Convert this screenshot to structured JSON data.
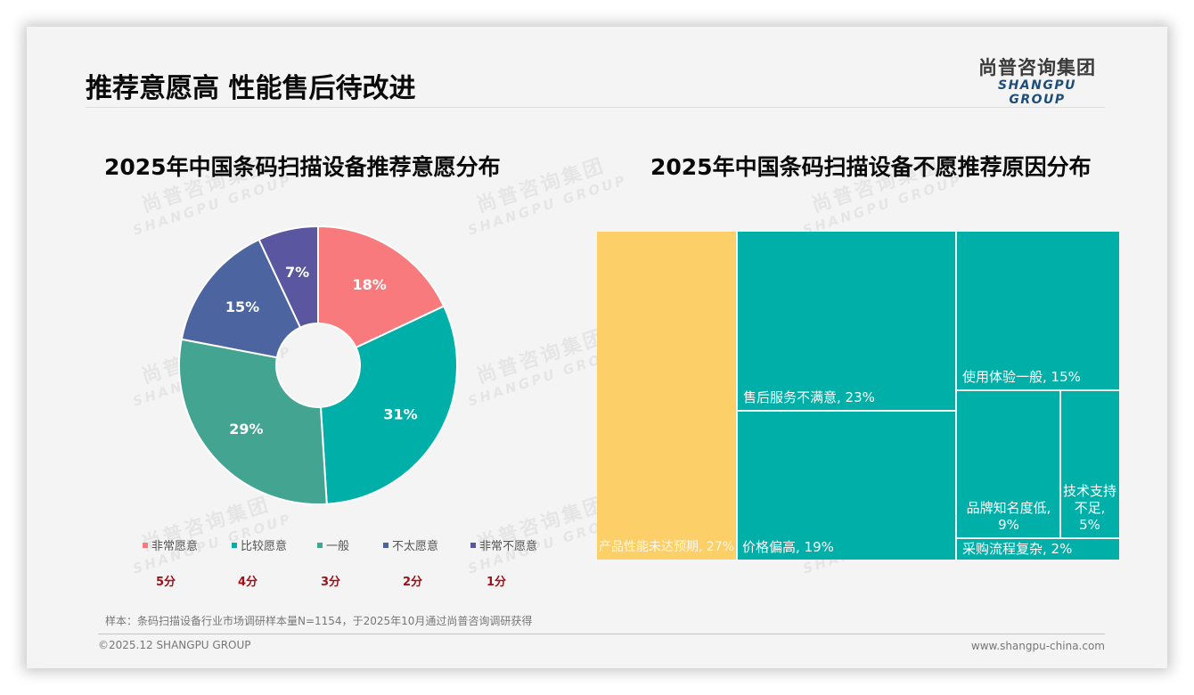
{
  "header": {
    "title": "推荐意愿高 性能售后待改进",
    "logo_cn": "尚普咨询集团",
    "logo_en": "SHANGPU GROUP"
  },
  "watermark": {
    "cn": "尚普咨询集团",
    "en": "SHANGPU GROUP"
  },
  "left_chart": {
    "title": "2025年中国条码扫描设备推荐意愿分布",
    "scores": [
      "5分",
      "4分",
      "3分",
      "2分",
      "1分"
    ]
  },
  "right_chart": {
    "title": "2025年中国条码扫描设备不愿推荐原因分布"
  },
  "chart_data": [
    {
      "type": "pie",
      "subtype": "donut",
      "title": "2025年中国条码扫描设备推荐意愿分布",
      "categories": [
        "非常愿意",
        "比较愿意",
        "一般",
        "不太愿意",
        "非常不愿意"
      ],
      "values": [
        18,
        31,
        29,
        15,
        7
      ],
      "labels": [
        "18%",
        "31%",
        "29%",
        "15%",
        "7%"
      ],
      "colors": [
        "#F87A7D",
        "#00AFA7",
        "#43A491",
        "#4C65A1",
        "#5A57A0"
      ],
      "scores": [
        "5分",
        "4分",
        "3分",
        "2分",
        "1分"
      ],
      "legend_position": "bottom",
      "start_angle": 0,
      "direction": "clockwise"
    },
    {
      "type": "treemap",
      "title": "2025年中国条码扫描设备不愿推荐原因分布",
      "categories": [
        "产品性能未达预期",
        "售后服务不满意",
        "价格偏高",
        "使用体验一般",
        "品牌知名度低",
        "技术支持不足",
        "采购流程复杂"
      ],
      "values": [
        27,
        23,
        19,
        15,
        9,
        5,
        2
      ],
      "labels": [
        "产品性能未达预期, 27%",
        "售后服务不满意, 23%",
        "价格偏高, 19%",
        "使用体验一般, 15%",
        "品牌知名度低, 9%",
        "技术支持不足, 5%",
        "采购流程复杂, 2%"
      ],
      "colors": [
        "#FDCF68",
        "#00AFA7",
        "#00AFA7",
        "#00AFA7",
        "#00AFA7",
        "#00AFA7",
        "#00AFA7"
      ]
    }
  ],
  "treemap_cells": [
    {
      "label": "产品性能未达预期, 27%",
      "color": "#FDCF68"
    },
    {
      "label": "售后服务不满意, 23%",
      "color": "#00AFA7"
    },
    {
      "label": "价格偏高, 19%",
      "color": "#00AFA7"
    },
    {
      "label": "使用体验一般, 15%",
      "color": "#00AFA7"
    },
    {
      "label": "品牌知名度低, 9%",
      "color": "#00AFA7"
    },
    {
      "label": "技术支持不足, 5%",
      "color": "#00AFA7"
    },
    {
      "label": "采购流程复杂, 2%",
      "color": "#00AFA7"
    }
  ],
  "footer": {
    "sample_note": "样本：条码扫描设备行业市场调研样本量N=1154，于2025年10月通过尚普咨询调研获得",
    "copyright": "©2025.12 SHANGPU GROUP",
    "website": "www.shangpu-china.com"
  }
}
